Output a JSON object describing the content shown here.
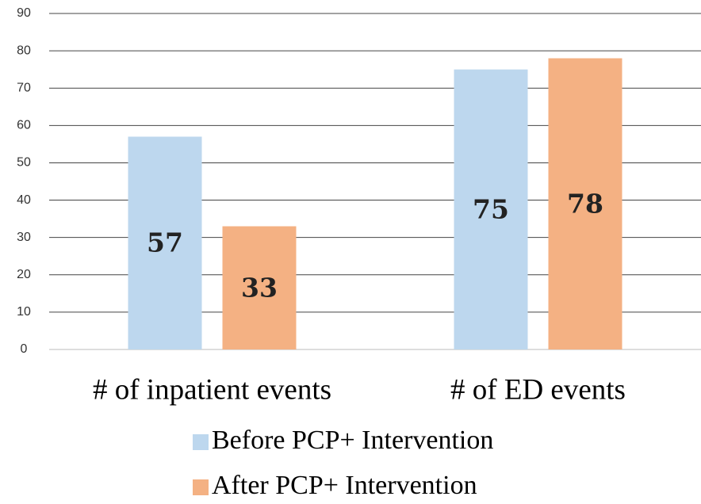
{
  "chart_data": {
    "type": "bar",
    "categories": [
      "# of inpatient events",
      "# of ED events"
    ],
    "series": [
      {
        "name": "Before PCP+ Intervention",
        "color": "#bdd7ee",
        "values": [
          57,
          75
        ]
      },
      {
        "name": "After PCP+ Intervention",
        "color": "#f4b183",
        "values": [
          33,
          78
        ]
      }
    ],
    "ylim": [
      0,
      90
    ],
    "yticks": [
      0,
      10,
      20,
      30,
      40,
      50,
      60,
      70,
      80,
      90
    ],
    "grid": true,
    "legend": "bottom"
  }
}
